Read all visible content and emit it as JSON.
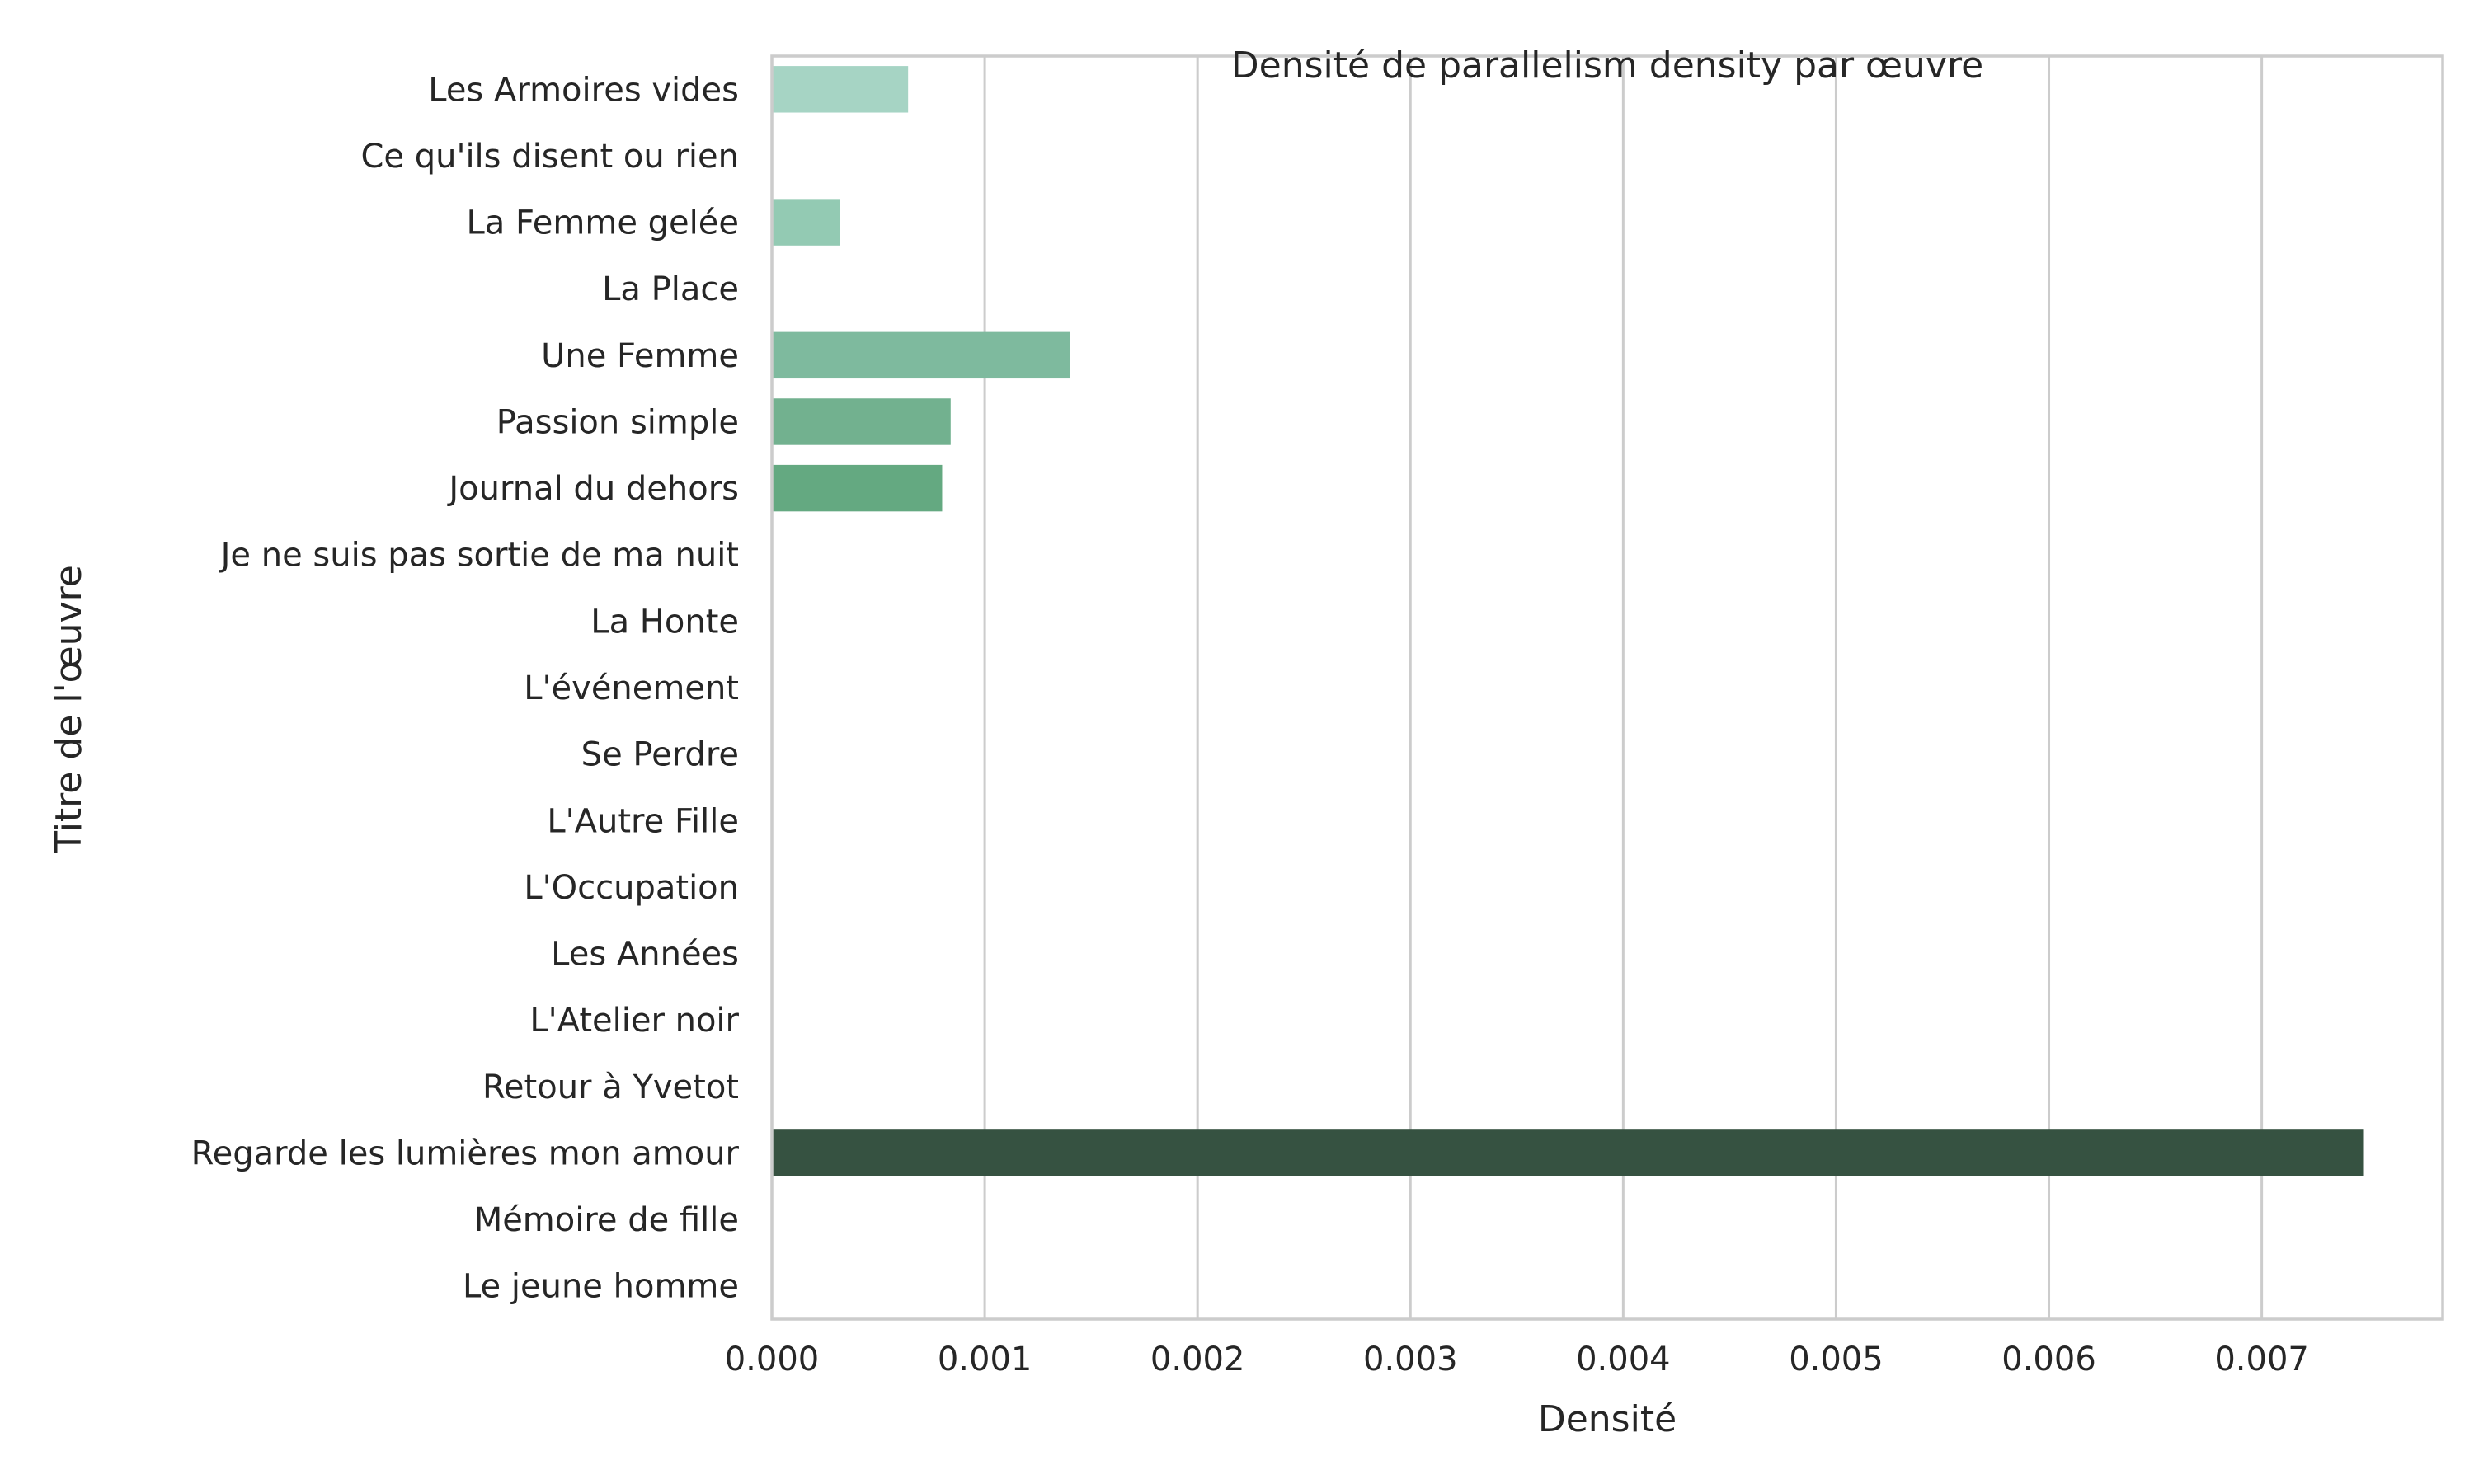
{
  "chart_data": {
    "type": "bar",
    "orientation": "horizontal",
    "title": "Densité de parallelism density par œuvre",
    "xlabel": "Densité",
    "ylabel": "Titre de l'œuvre",
    "xlim": [
      0,
      0.00785
    ],
    "x_ticks": [
      "0.000",
      "0.001",
      "0.002",
      "0.003",
      "0.004",
      "0.005",
      "0.006",
      "0.007"
    ],
    "grid": "vertical",
    "categories": [
      "Les Armoires vides",
      "Ce qu'ils disent ou rien",
      "La Femme gelée",
      "La Place",
      "Une Femme",
      "Passion simple",
      "Journal du dehors",
      "Je ne suis pas sortie de ma nuit",
      "La Honte",
      "L'événement",
      "Se Perdre",
      "L'Autre Fille",
      "L'Occupation",
      "Les Années",
      "L'Atelier noir",
      "Retour à Yvetot",
      "Regarde les lumières mon amour",
      "Mémoire de fille",
      "Le jeune homme"
    ],
    "values": [
      0.00064,
      0,
      0.00032,
      0,
      0.0014,
      0.00084,
      0.0008,
      0,
      0,
      0,
      0,
      0,
      0,
      0,
      0,
      0,
      0.00748,
      0,
      0
    ],
    "colors": [
      "#a6d4c4",
      "#9dcfbb",
      "#93cab3",
      "#89c4aa",
      "#7eba9e",
      "#72b18f",
      "#64a981",
      "#5a9975",
      "#52896a",
      "#4a7a5f",
      "#436c55",
      "#3d614d",
      "#3a5b48",
      "#385746",
      "#375544",
      "#365343",
      "#365241",
      "#365140",
      "#365040"
    ]
  }
}
